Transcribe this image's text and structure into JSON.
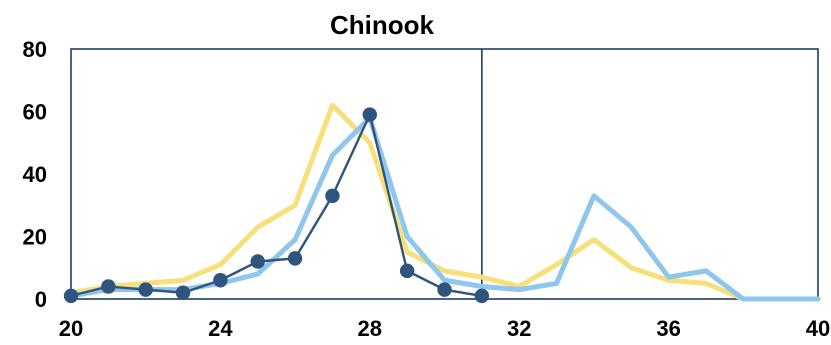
{
  "chart_data": {
    "type": "line",
    "title": "Chinook",
    "xlabel": "",
    "ylabel": "",
    "xlim": [
      20,
      40
    ],
    "ylim": [
      0,
      80
    ],
    "x_ticks": [
      20,
      24,
      28,
      32,
      36,
      40
    ],
    "y_ticks": [
      0,
      20,
      40,
      60,
      80
    ],
    "grid": false,
    "legend": "none",
    "vertical_reference_x": 31,
    "colors": {
      "yellow_series": "#f7df7a",
      "light_blue_series": "#8fc6ee",
      "dark_blue_series": "#2f547e",
      "axis": "#203b63"
    },
    "series": [
      {
        "style": "yellow_line",
        "x": [
          20,
          21,
          22,
          23,
          24,
          25,
          26,
          27,
          28,
          29,
          30,
          31,
          32,
          33,
          34,
          35,
          36,
          37,
          38,
          39,
          40
        ],
        "values": [
          2,
          4,
          5,
          6,
          11,
          23,
          30,
          62,
          50,
          15,
          9,
          7,
          4,
          11,
          19,
          10,
          6,
          5,
          0,
          0,
          0
        ]
      },
      {
        "style": "light_blue_line",
        "x": [
          20,
          21,
          22,
          23,
          24,
          25,
          26,
          27,
          28,
          29,
          30,
          31,
          32,
          33,
          34,
          35,
          36,
          37,
          38,
          39,
          40
        ],
        "values": [
          1,
          3,
          3,
          3,
          5,
          8,
          19,
          46,
          58,
          20,
          6,
          4,
          3,
          5,
          33,
          23,
          7,
          9,
          0,
          0,
          0
        ]
      },
      {
        "style": "dark_blue_markers",
        "x": [
          20,
          21,
          22,
          23,
          24,
          25,
          26,
          27,
          28,
          29,
          30,
          31
        ],
        "values": [
          1,
          4,
          3,
          2,
          6,
          12,
          13,
          33,
          59,
          9,
          3,
          1
        ]
      }
    ]
  }
}
